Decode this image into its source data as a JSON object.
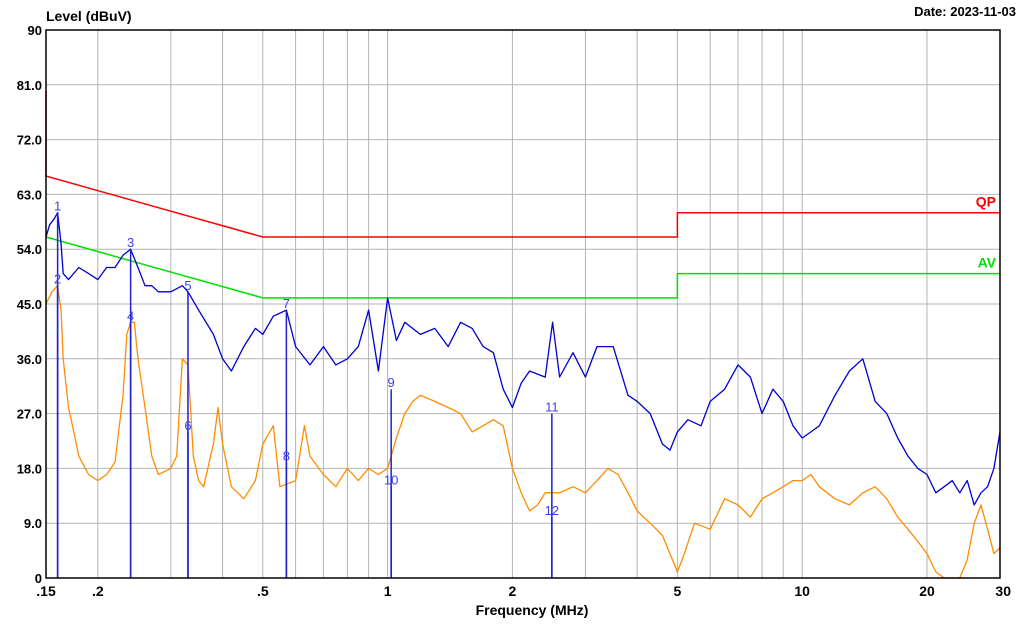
{
  "chart_data": {
    "type": "line",
    "title": "",
    "date_label": "Date: 2023-11-03",
    "ylabel": "Level (dBuV)",
    "xlabel": "Frequency (MHz)",
    "x_scale": "log",
    "xlim": [
      0.15,
      30
    ],
    "ylim": [
      0,
      90
    ],
    "grid": true,
    "y_ticks": [
      {
        "value": 0,
        "label": "0"
      },
      {
        "value": 9,
        "label": "9.0"
      },
      {
        "value": 18,
        "label": "18.0"
      },
      {
        "value": 27,
        "label": "27.0"
      },
      {
        "value": 36,
        "label": "36.0"
      },
      {
        "value": 45,
        "label": "45.0"
      },
      {
        "value": 54,
        "label": "54.0"
      },
      {
        "value": 63,
        "label": "63.0"
      },
      {
        "value": 72,
        "label": "72.0"
      },
      {
        "value": 81,
        "label": "81.0"
      },
      {
        "value": 90,
        "label": "90"
      }
    ],
    "x_ticks": [
      {
        "value": 0.15,
        "label": ".15"
      },
      {
        "value": 0.2,
        "label": ".2"
      },
      {
        "value": 0.5,
        "label": ".5"
      },
      {
        "value": 1,
        "label": "1"
      },
      {
        "value": 2,
        "label": "2"
      },
      {
        "value": 5,
        "label": "5"
      },
      {
        "value": 10,
        "label": "10"
      },
      {
        "value": 20,
        "label": "20"
      },
      {
        "value": 30,
        "label": "30"
      }
    ],
    "limits": [
      {
        "name": "QP",
        "color": "#ff0000",
        "points": [
          [
            0.15,
            80
          ],
          [
            0.15,
            66
          ],
          [
            0.5,
            56
          ],
          [
            5,
            56
          ],
          [
            5,
            60
          ],
          [
            30,
            60
          ]
        ]
      },
      {
        "name": "AV",
        "color": "#00e000",
        "points": [
          [
            0.15,
            56
          ],
          [
            0.5,
            46
          ],
          [
            5,
            46
          ],
          [
            5,
            50
          ],
          [
            30,
            50
          ]
        ]
      }
    ],
    "series": [
      {
        "color": "#0000d0",
        "points": [
          [
            0.15,
            56
          ],
          [
            0.153,
            58
          ],
          [
            0.157,
            59
          ],
          [
            0.16,
            60
          ],
          [
            0.163,
            55
          ],
          [
            0.165,
            50
          ],
          [
            0.17,
            49
          ],
          [
            0.18,
            51
          ],
          [
            0.19,
            50
          ],
          [
            0.2,
            49
          ],
          [
            0.21,
            51
          ],
          [
            0.22,
            51
          ],
          [
            0.23,
            53
          ],
          [
            0.24,
            54
          ],
          [
            0.25,
            51
          ],
          [
            0.26,
            48
          ],
          [
            0.27,
            48
          ],
          [
            0.28,
            47
          ],
          [
            0.3,
            47
          ],
          [
            0.32,
            48
          ],
          [
            0.33,
            47
          ],
          [
            0.35,
            44
          ],
          [
            0.38,
            40
          ],
          [
            0.4,
            36
          ],
          [
            0.42,
            34
          ],
          [
            0.45,
            38
          ],
          [
            0.48,
            41
          ],
          [
            0.5,
            40
          ],
          [
            0.53,
            43
          ],
          [
            0.57,
            44
          ],
          [
            0.6,
            38
          ],
          [
            0.65,
            35
          ],
          [
            0.7,
            38
          ],
          [
            0.75,
            35
          ],
          [
            0.8,
            36
          ],
          [
            0.85,
            38
          ],
          [
            0.9,
            44
          ],
          [
            0.95,
            34
          ],
          [
            1,
            46
          ],
          [
            1.05,
            39
          ],
          [
            1.1,
            42
          ],
          [
            1.2,
            40
          ],
          [
            1.3,
            41
          ],
          [
            1.4,
            38
          ],
          [
            1.5,
            42
          ],
          [
            1.6,
            41
          ],
          [
            1.7,
            38
          ],
          [
            1.8,
            37
          ],
          [
            1.9,
            31
          ],
          [
            2,
            28
          ],
          [
            2.1,
            32
          ],
          [
            2.2,
            34
          ],
          [
            2.4,
            33
          ],
          [
            2.5,
            42
          ],
          [
            2.6,
            33
          ],
          [
            2.8,
            37
          ],
          [
            3,
            33
          ],
          [
            3.2,
            38
          ],
          [
            3.5,
            38
          ],
          [
            3.8,
            30
          ],
          [
            4,
            29
          ],
          [
            4.3,
            27
          ],
          [
            4.6,
            22
          ],
          [
            4.8,
            21
          ],
          [
            5,
            24
          ],
          [
            5.3,
            26
          ],
          [
            5.7,
            25
          ],
          [
            6,
            29
          ],
          [
            6.5,
            31
          ],
          [
            7,
            35
          ],
          [
            7.5,
            33
          ],
          [
            8,
            27
          ],
          [
            8.5,
            31
          ],
          [
            9,
            29
          ],
          [
            9.5,
            25
          ],
          [
            10,
            23
          ],
          [
            10.5,
            24
          ],
          [
            11,
            25
          ],
          [
            12,
            30
          ],
          [
            13,
            34
          ],
          [
            14,
            36
          ],
          [
            15,
            29
          ],
          [
            16,
            27
          ],
          [
            17,
            23
          ],
          [
            18,
            20
          ],
          [
            19,
            18
          ],
          [
            20,
            17
          ],
          [
            21,
            14
          ],
          [
            22,
            15
          ],
          [
            23,
            16
          ],
          [
            24,
            14
          ],
          [
            25,
            16
          ],
          [
            26,
            12
          ],
          [
            27,
            14
          ],
          [
            28,
            15
          ],
          [
            29,
            18
          ],
          [
            30,
            24
          ]
        ]
      },
      {
        "color": "#ff8c00",
        "points": [
          [
            0.15,
            45
          ],
          [
            0.155,
            47
          ],
          [
            0.16,
            48
          ],
          [
            0.163,
            44
          ],
          [
            0.165,
            36
          ],
          [
            0.17,
            28
          ],
          [
            0.175,
            24
          ],
          [
            0.18,
            20
          ],
          [
            0.19,
            17
          ],
          [
            0.2,
            16
          ],
          [
            0.21,
            17
          ],
          [
            0.22,
            19
          ],
          [
            0.23,
            30
          ],
          [
            0.235,
            40
          ],
          [
            0.24,
            42
          ],
          [
            0.245,
            42
          ],
          [
            0.25,
            36
          ],
          [
            0.26,
            28
          ],
          [
            0.27,
            20
          ],
          [
            0.28,
            17
          ],
          [
            0.3,
            18
          ],
          [
            0.31,
            20
          ],
          [
            0.32,
            36
          ],
          [
            0.33,
            35
          ],
          [
            0.34,
            20
          ],
          [
            0.35,
            16
          ],
          [
            0.36,
            15
          ],
          [
            0.38,
            22
          ],
          [
            0.39,
            28
          ],
          [
            0.4,
            22
          ],
          [
            0.42,
            15
          ],
          [
            0.45,
            13
          ],
          [
            0.48,
            16
          ],
          [
            0.5,
            22
          ],
          [
            0.53,
            25
          ],
          [
            0.55,
            15
          ],
          [
            0.6,
            16
          ],
          [
            0.63,
            25
          ],
          [
            0.65,
            20
          ],
          [
            0.7,
            17
          ],
          [
            0.75,
            15
          ],
          [
            0.8,
            18
          ],
          [
            0.85,
            16
          ],
          [
            0.9,
            18
          ],
          [
            0.95,
            17
          ],
          [
            1,
            18
          ],
          [
            1.05,
            23
          ],
          [
            1.1,
            27
          ],
          [
            1.15,
            29
          ],
          [
            1.2,
            30
          ],
          [
            1.3,
            29
          ],
          [
            1.4,
            28
          ],
          [
            1.5,
            27
          ],
          [
            1.6,
            24
          ],
          [
            1.7,
            25
          ],
          [
            1.8,
            26
          ],
          [
            1.9,
            25
          ],
          [
            2,
            18
          ],
          [
            2.1,
            14
          ],
          [
            2.2,
            11
          ],
          [
            2.3,
            12
          ],
          [
            2.4,
            14
          ],
          [
            2.6,
            14
          ],
          [
            2.8,
            15
          ],
          [
            3,
            14
          ],
          [
            3.2,
            16
          ],
          [
            3.4,
            18
          ],
          [
            3.6,
            17
          ],
          [
            3.8,
            14
          ],
          [
            4,
            11
          ],
          [
            4.3,
            9
          ],
          [
            4.6,
            7
          ],
          [
            5,
            1
          ],
          [
            5.2,
            4
          ],
          [
            5.5,
            9
          ],
          [
            6,
            8
          ],
          [
            6.5,
            13
          ],
          [
            7,
            12
          ],
          [
            7.5,
            10
          ],
          [
            8,
            13
          ],
          [
            8.5,
            14
          ],
          [
            9,
            15
          ],
          [
            9.5,
            16
          ],
          [
            10,
            16
          ],
          [
            10.5,
            17
          ],
          [
            11,
            15
          ],
          [
            12,
            13
          ],
          [
            13,
            12
          ],
          [
            14,
            14
          ],
          [
            15,
            15
          ],
          [
            16,
            13
          ],
          [
            17,
            10
          ],
          [
            18,
            8
          ],
          [
            19,
            6
          ],
          [
            20,
            4
          ],
          [
            21,
            1
          ],
          [
            22,
            0
          ],
          [
            24,
            0
          ],
          [
            25,
            3
          ],
          [
            26,
            9
          ],
          [
            27,
            12
          ],
          [
            28,
            8
          ],
          [
            29,
            4
          ],
          [
            30,
            5
          ]
        ]
      }
    ],
    "markers": [
      {
        "label": "1",
        "x": 0.16,
        "y": 60
      },
      {
        "label": "2",
        "x": 0.16,
        "y": 48
      },
      {
        "label": "3",
        "x": 0.24,
        "y": 54
      },
      {
        "label": "4",
        "x": 0.24,
        "y": 42
      },
      {
        "label": "5",
        "x": 0.33,
        "y": 47
      },
      {
        "label": "6",
        "x": 0.33,
        "y": 24
      },
      {
        "label": "7",
        "x": 0.57,
        "y": 44
      },
      {
        "label": "8",
        "x": 0.57,
        "y": 19
      },
      {
        "label": "9",
        "x": 1.02,
        "y": 31
      },
      {
        "label": "10",
        "x": 1.02,
        "y": 15
      },
      {
        "label": "11",
        "x": 2.49,
        "y": 27
      },
      {
        "label": "12",
        "x": 2.49,
        "y": 10
      }
    ]
  }
}
